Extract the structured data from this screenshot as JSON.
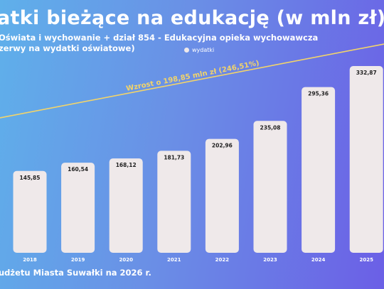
{
  "title": "atki bieżące na edukację (w mln zł)",
  "subtitle_line1": "Oświata i wychowanie + dział 854 - Edukacyjna opieka wychowawcza",
  "subtitle_line2": "zerwy na wydatki oświatowe)",
  "footer": "udżetu Miasta Suwałki na 2026 r.",
  "colors": {
    "bar": "#efe9ea",
    "trend": "#f2d46a",
    "text": "#ffffff"
  },
  "chart_data": {
    "type": "bar",
    "categories": [
      "2018",
      "2019",
      "2020",
      "2021",
      "2022",
      "2023",
      "2024",
      "2025"
    ],
    "series": [
      {
        "name": "wydatki",
        "values": [
          145.85,
          160.54,
          168.12,
          181.73,
          202.96,
          235.08,
          295.36,
          332.87
        ]
      }
    ],
    "value_labels": [
      "145,85",
      "160,54",
      "168,12",
      "181,73",
      "202,96",
      "235,08",
      "295,36",
      "332,87"
    ],
    "ylim": [
      0,
      340
    ],
    "grid": false,
    "legend": "top-center",
    "annotation": "Wzrost o 198,85 mln zł (246,51%)"
  }
}
